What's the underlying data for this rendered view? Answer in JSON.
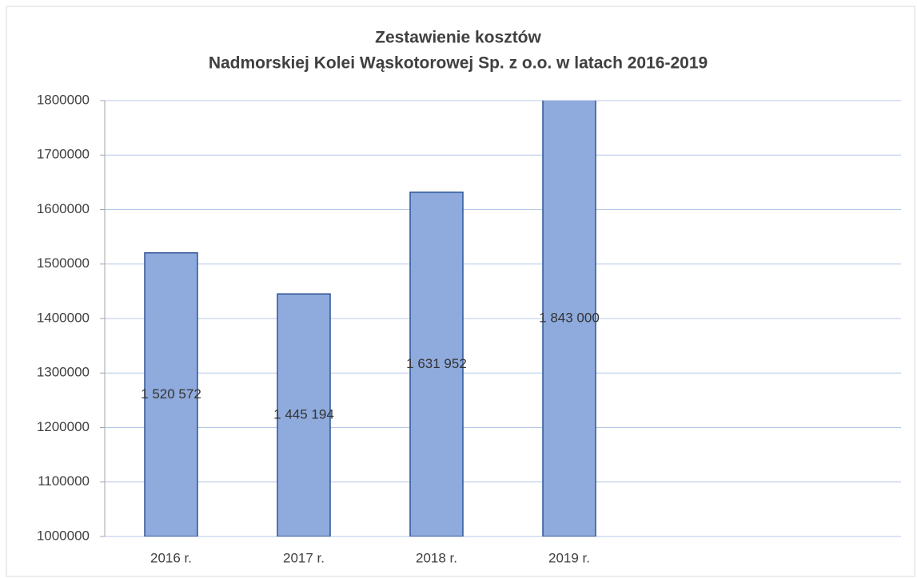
{
  "chart_data": {
    "type": "bar",
    "title": [
      "Zestawienie kosztów",
      "Nadmorskiej Kolei Wąskotorowej Sp. z o.o. w latach 2016-2019"
    ],
    "categories": [
      "2016 r.",
      "2017 r.",
      "2018 r.",
      "2019 r.",
      null,
      null
    ],
    "values": [
      1520572,
      1445194,
      1631952,
      1843000,
      null,
      null
    ],
    "value_labels": [
      "1 520 572",
      "1 445 194",
      "1 631 952",
      "1 843 000",
      null,
      null
    ],
    "color": "#8faadc",
    "edge_color": "#2f5597",
    "ylim": [
      1000000,
      1800000
    ],
    "yticks": [
      1000000,
      1100000,
      1200000,
      1300000,
      1400000,
      1500000,
      1600000,
      1700000,
      1800000
    ],
    "grid": true
  }
}
